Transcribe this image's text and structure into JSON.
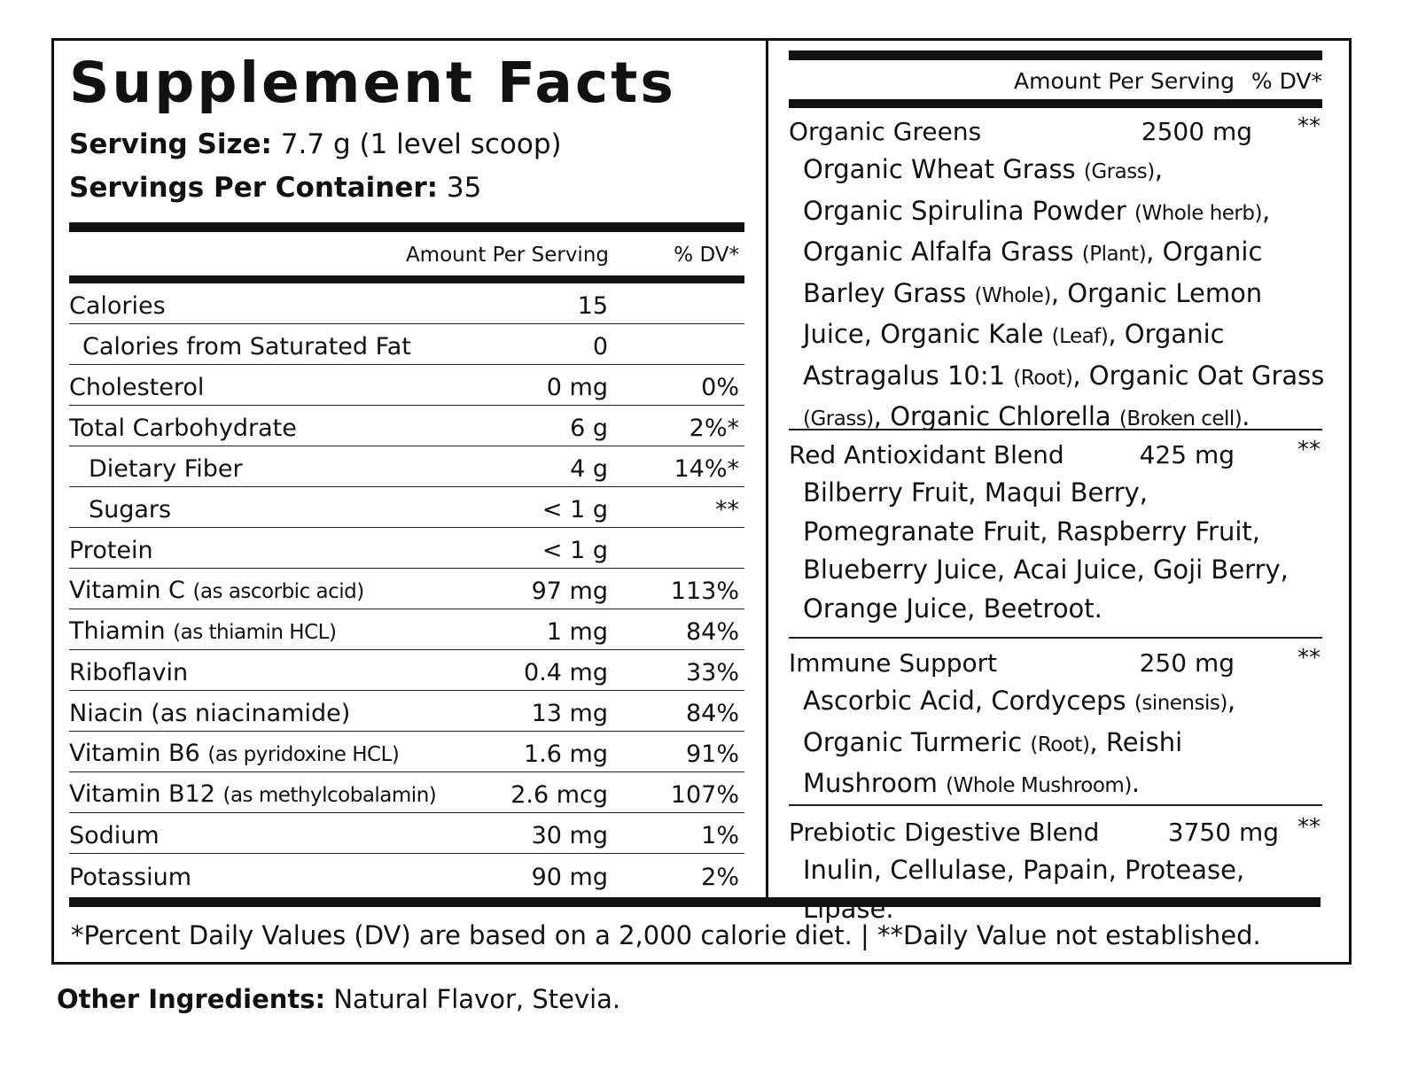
{
  "title": "Supplement Facts",
  "serving": {
    "size_label": "Serving Size:",
    "size_value": " 7.7 g (1 level scoop)",
    "per_container_label": "Servings Per Container:",
    "per_container_value": " 35"
  },
  "left_header": {
    "amount": "Amount Per Serving",
    "dv": "% DV*"
  },
  "nutrients": [
    {
      "name": "Calories",
      "qualifier": "",
      "amount": "15",
      "dv": ""
    },
    {
      "name": "Calories from Saturated Fat",
      "qualifier": "",
      "amount": "0",
      "dv": ""
    },
    {
      "name": "Cholesterol",
      "qualifier": "",
      "amount": "0 mg",
      "dv": "0%"
    },
    {
      "name": "Total Carbohydrate",
      "qualifier": "",
      "amount": "6 g",
      "dv": "2%*"
    },
    {
      "name": "Dietary Fiber",
      "qualifier": "",
      "amount": "4 g",
      "dv": "14%*"
    },
    {
      "name": "Sugars",
      "qualifier": "",
      "amount": "< 1 g",
      "dv": "**"
    },
    {
      "name": "Protein",
      "qualifier": "",
      "amount": "< 1 g",
      "dv": ""
    },
    {
      "name": "Vitamin C",
      "qualifier": "(as ascorbic acid)",
      "amount": "97 mg",
      "dv": "113%"
    },
    {
      "name": "Thiamin",
      "qualifier": "(as thiamin HCL)",
      "amount": "1 mg",
      "dv": "84%"
    },
    {
      "name": "Riboflavin",
      "qualifier": "",
      "amount": "0.4 mg",
      "dv": "33%"
    },
    {
      "name": "Niacin (as niacinamide)",
      "qualifier": "",
      "amount": "13 mg",
      "dv": "84%"
    },
    {
      "name": "Vitamin B6",
      "qualifier": "(as pyridoxine HCL)",
      "amount": "1.6 mg",
      "dv": "91%"
    },
    {
      "name": "Vitamin B12",
      "qualifier": "(as methylcobalamin)",
      "amount": "2.6 mcg",
      "dv": "107%"
    },
    {
      "name": "Sodium",
      "qualifier": "",
      "amount": "30 mg",
      "dv": "1%"
    },
    {
      "name": "Potassium",
      "qualifier": "",
      "amount": "90 mg",
      "dv": "2%"
    }
  ],
  "right_header": {
    "amount": "Amount Per Serving",
    "dv": "% DV*"
  },
  "blends": [
    {
      "name": "Organic Greens",
      "amount": "2500 mg",
      "dv": "**",
      "parts": [
        {
          "t": "Organic Wheat Grass "
        },
        {
          "q": "(Grass)"
        },
        {
          "t": ",\nOrganic Spirulina Powder "
        },
        {
          "q": "(Whole herb)"
        },
        {
          "t": ",\nOrganic Alfalfa Grass "
        },
        {
          "q": "(Plant)"
        },
        {
          "t": ", Organic\nBarley Grass "
        },
        {
          "q": "(Whole)"
        },
        {
          "t": ", Organic Lemon\nJuice, Organic Kale "
        },
        {
          "q": "(Leaf)"
        },
        {
          "t": ", Organic\nAstragalus 10:1 "
        },
        {
          "q": "(Root)"
        },
        {
          "t": ", Organic Oat Grass\n"
        },
        {
          "q": "(Grass)"
        },
        {
          "t": ", Organic Chlorella "
        },
        {
          "q": "(Broken cell)"
        },
        {
          "t": "."
        }
      ]
    },
    {
      "name": "Red Antioxidant Blend",
      "amount": "425 mg",
      "dv": "**",
      "parts": [
        {
          "t": "Bilberry Fruit, Maqui Berry,\nPomegranate Fruit, Raspberry Fruit,\nBlueberry Juice, Acai Juice, Goji Berry,\nOrange Juice, Beetroot."
        }
      ]
    },
    {
      "name": "Immune Support",
      "amount": "250 mg",
      "dv": "**",
      "parts": [
        {
          "t": "Ascorbic Acid, Cordyceps "
        },
        {
          "q": "(sinensis)"
        },
        {
          "t": ",\nOrganic Turmeric "
        },
        {
          "q": "(Root)"
        },
        {
          "t": ", Reishi\nMushroom "
        },
        {
          "q": "(Whole Mushroom)"
        },
        {
          "t": "."
        }
      ]
    },
    {
      "name": "Prebiotic Digestive Blend",
      "amount": "3750 mg",
      "dv": "**",
      "parts": [
        {
          "t": "Inulin, Cellulase, Papain, Protease, Lipase."
        }
      ]
    }
  ],
  "footnote": "*Percent Daily Values (DV) are based on a 2,000 calorie diet.  |  **Daily Value not established.",
  "other_ingredients": {
    "label": "Other Ingredients:",
    "value": " Natural Flavor, Stevia."
  }
}
